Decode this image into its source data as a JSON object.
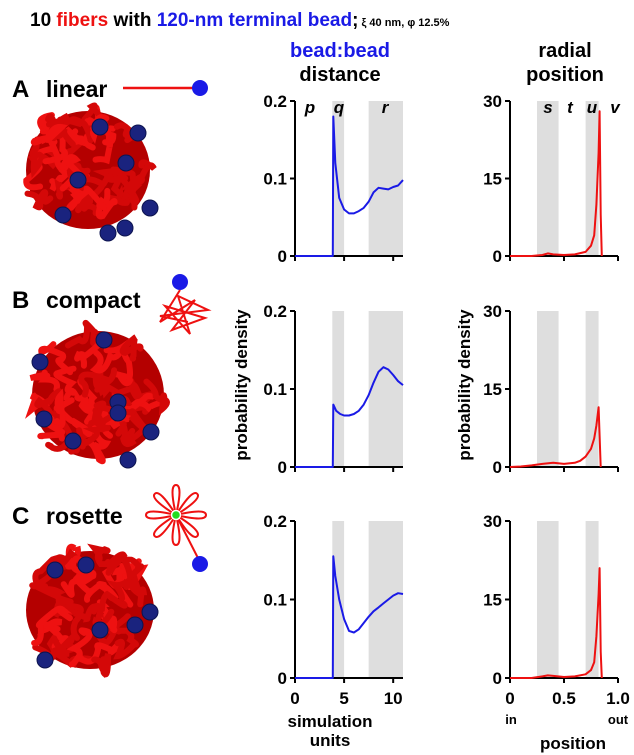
{
  "title": {
    "part1": "10 ",
    "fibers": "fibers",
    "part2": " with ",
    "bead": "120-nm terminal bead",
    "semi": ";",
    "params": " ξ 40 nm, φ 12.5%"
  },
  "column_headers": {
    "distance_line1": "bead:bead",
    "distance_line2": "distance",
    "radial_line1": "radial",
    "radial_line2": "position"
  },
  "panels": [
    {
      "letter": "A",
      "name": "linear"
    },
    {
      "letter": "B",
      "name": "compact"
    },
    {
      "letter": "C",
      "name": "rosette"
    }
  ],
  "colors": {
    "fibers": "#ee1111",
    "bead": "#1a1ae6",
    "bead_dark": "#1a237e",
    "shade": "#dedede",
    "green": "#22dd22"
  },
  "chart_data": [
    {
      "type": "line",
      "panel": "A",
      "series": [
        {
          "x": [
            0,
            3.85,
            3.9,
            4.1,
            4.5,
            5,
            5.5,
            6,
            6.5,
            7,
            7.5,
            8,
            8.5,
            9,
            9.5,
            10,
            10.5,
            11
          ],
          "y": [
            0,
            0,
            0.18,
            0.12,
            0.075,
            0.06,
            0.055,
            0.055,
            0.058,
            0.062,
            0.07,
            0.082,
            0.088,
            0.087,
            0.086,
            0.089,
            0.091,
            0.098
          ]
        }
      ],
      "xlim": [
        0,
        11
      ],
      "ylim": [
        0,
        0.2
      ],
      "yticks": [
        "0",
        "0.1",
        "0.2"
      ],
      "shaded": [
        [
          3.8,
          5
        ],
        [
          7.5,
          11
        ]
      ],
      "regions": [
        "p",
        "q",
        "r"
      ]
    },
    {
      "type": "line",
      "panel": "A",
      "series": [
        {
          "x": [
            0,
            0.2,
            0.3,
            0.35,
            0.4,
            0.5,
            0.6,
            0.7,
            0.75,
            0.78,
            0.8,
            0.82,
            0.83,
            0.84,
            0.85
          ],
          "y": [
            0,
            0,
            0.2,
            0.5,
            0.3,
            0.2,
            0.3,
            0.8,
            2,
            4,
            10,
            20,
            28,
            8,
            0
          ]
        }
      ],
      "xlim": [
        0,
        1
      ],
      "ylim": [
        0,
        30
      ],
      "yticks": [
        "0",
        "15",
        "30"
      ],
      "shaded": [
        [
          0.25,
          0.45
        ],
        [
          0.7,
          0.82
        ]
      ],
      "regions": [
        "s",
        "t",
        "u",
        "v"
      ]
    },
    {
      "type": "line",
      "panel": "B",
      "ylabel": "probability density",
      "series": [
        {
          "x": [
            0,
            3.85,
            3.9,
            4.2,
            4.6,
            5,
            5.5,
            6,
            6.5,
            7,
            7.5,
            8,
            8.5,
            9,
            9.5,
            10,
            10.5,
            11
          ],
          "y": [
            0,
            0,
            0.08,
            0.072,
            0.068,
            0.066,
            0.066,
            0.068,
            0.072,
            0.08,
            0.092,
            0.108,
            0.122,
            0.128,
            0.125,
            0.118,
            0.11,
            0.105
          ]
        }
      ],
      "xlim": [
        0,
        11
      ],
      "ylim": [
        0,
        0.2
      ],
      "yticks": [
        "0",
        "0.1",
        "0.2"
      ],
      "shaded": [
        [
          3.8,
          5
        ],
        [
          7.5,
          11
        ]
      ]
    },
    {
      "type": "line",
      "panel": "B",
      "ylabel": "probability density",
      "series": [
        {
          "x": [
            0,
            0.1,
            0.2,
            0.3,
            0.4,
            0.5,
            0.6,
            0.65,
            0.7,
            0.75,
            0.78,
            0.8,
            0.82,
            0.83,
            0.84
          ],
          "y": [
            0,
            0.1,
            0.3,
            0.6,
            0.8,
            0.6,
            0.8,
            1.2,
            2,
            3.5,
            5.5,
            8,
            11.5,
            6,
            0
          ]
        }
      ],
      "xlim": [
        0,
        1
      ],
      "ylim": [
        0,
        30
      ],
      "yticks": [
        "0",
        "15",
        "30"
      ],
      "shaded": [
        [
          0.25,
          0.45
        ],
        [
          0.7,
          0.82
        ]
      ]
    },
    {
      "type": "line",
      "panel": "C",
      "xlabel": "simulation units",
      "series": [
        {
          "x": [
            0,
            3.85,
            3.9,
            4.1,
            4.5,
            5,
            5.5,
            6,
            6.5,
            7,
            7.5,
            8,
            8.5,
            9,
            9.5,
            10,
            10.5,
            11
          ],
          "y": [
            0,
            0,
            0.155,
            0.13,
            0.1,
            0.075,
            0.06,
            0.058,
            0.062,
            0.07,
            0.078,
            0.085,
            0.09,
            0.095,
            0.1,
            0.105,
            0.108,
            0.107
          ]
        }
      ],
      "xlim": [
        0,
        11
      ],
      "ylim": [
        0,
        0.2
      ],
      "xticks": [
        "0",
        "5",
        "10"
      ],
      "yticks": [
        "0",
        "0.1",
        "0.2"
      ],
      "shaded": [
        [
          3.8,
          5
        ],
        [
          7.5,
          11
        ]
      ]
    },
    {
      "type": "line",
      "panel": "C",
      "xlabel": "position",
      "series": [
        {
          "x": [
            0,
            0.2,
            0.3,
            0.35,
            0.4,
            0.5,
            0.6,
            0.7,
            0.75,
            0.78,
            0.8,
            0.82,
            0.83,
            0.84,
            0.85
          ],
          "y": [
            0,
            0,
            0.3,
            0.5,
            0.4,
            0.2,
            0.3,
            0.7,
            1.5,
            3,
            8,
            16,
            21,
            5,
            0
          ]
        }
      ],
      "xlim": [
        0,
        1
      ],
      "ylim": [
        0,
        30
      ],
      "xticks": [
        "0",
        "0.5",
        "1.0"
      ],
      "xtick_notes": [
        "in",
        "out"
      ],
      "yticks": [
        "0",
        "15",
        "30"
      ],
      "shaded": [
        [
          0.25,
          0.45
        ],
        [
          0.7,
          0.82
        ]
      ]
    }
  ]
}
